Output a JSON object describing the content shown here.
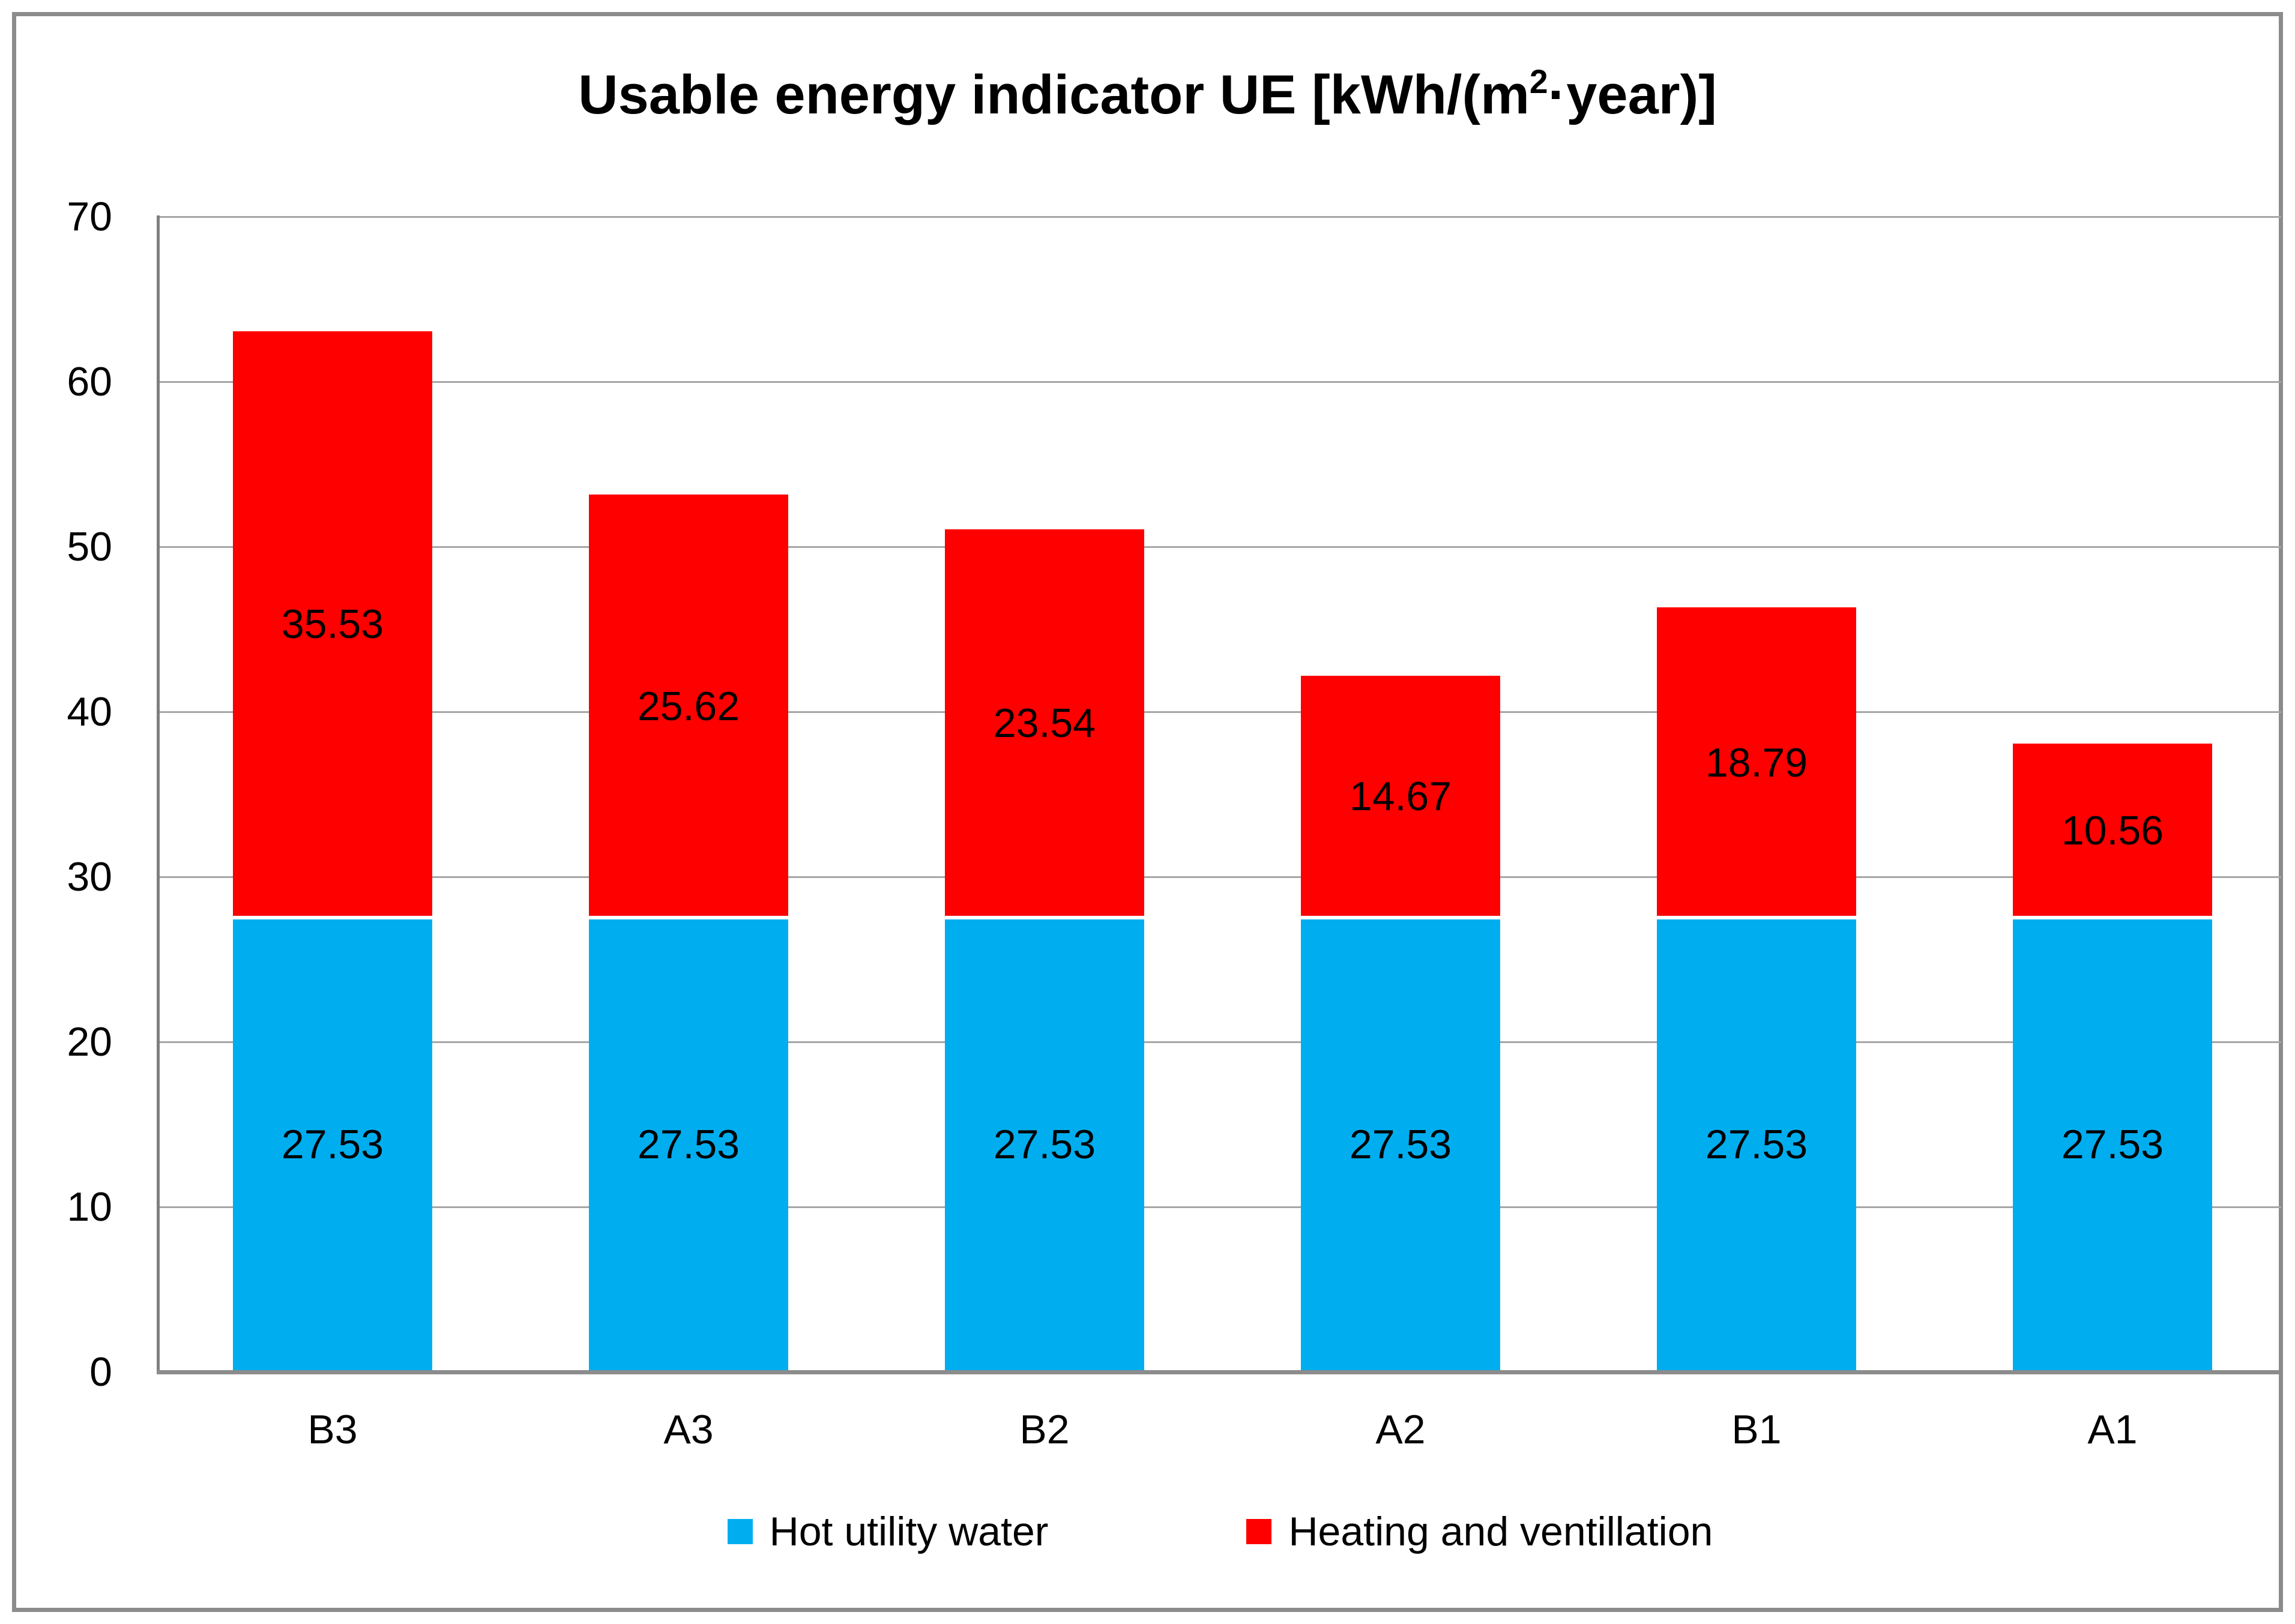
{
  "title": {
    "prefix": "Usable energy indicator UE [kWh/(m",
    "superscript": "2",
    "suffix": "·year)]"
  },
  "y_axis": {
    "ticks": [
      0,
      10,
      20,
      30,
      40,
      50,
      60,
      70
    ]
  },
  "chart_data": {
    "type": "bar",
    "stacked": true,
    "title": "Usable energy indicator UE [kWh/(m²·year)]",
    "categories": [
      "B3",
      "A3",
      "B2",
      "A2",
      "B1",
      "A1"
    ],
    "series": [
      {
        "name": "Hot utility water",
        "color": "#00AEEF",
        "values": [
          27.53,
          27.53,
          27.53,
          27.53,
          27.53,
          27.53
        ],
        "labels": [
          "27.53",
          "27.53",
          "27.53",
          "27.53",
          "27.53",
          "27.53"
        ]
      },
      {
        "name": "Heating and ventillation",
        "color": "#FE0000",
        "values": [
          35.53,
          25.62,
          23.54,
          14.67,
          18.79,
          10.56
        ],
        "labels": [
          "35.53",
          "25.62",
          "23.54",
          "14.67",
          "18.79",
          "10.56"
        ]
      }
    ],
    "ylim": [
      0,
      70
    ],
    "ytick_step": 10,
    "grid": true,
    "gridline_color": "#A6A6A6",
    "axis_color": "#7F7F7F",
    "frame_color": "#8C8C8C",
    "value_label_position": "center",
    "legend_position": "bottom"
  }
}
